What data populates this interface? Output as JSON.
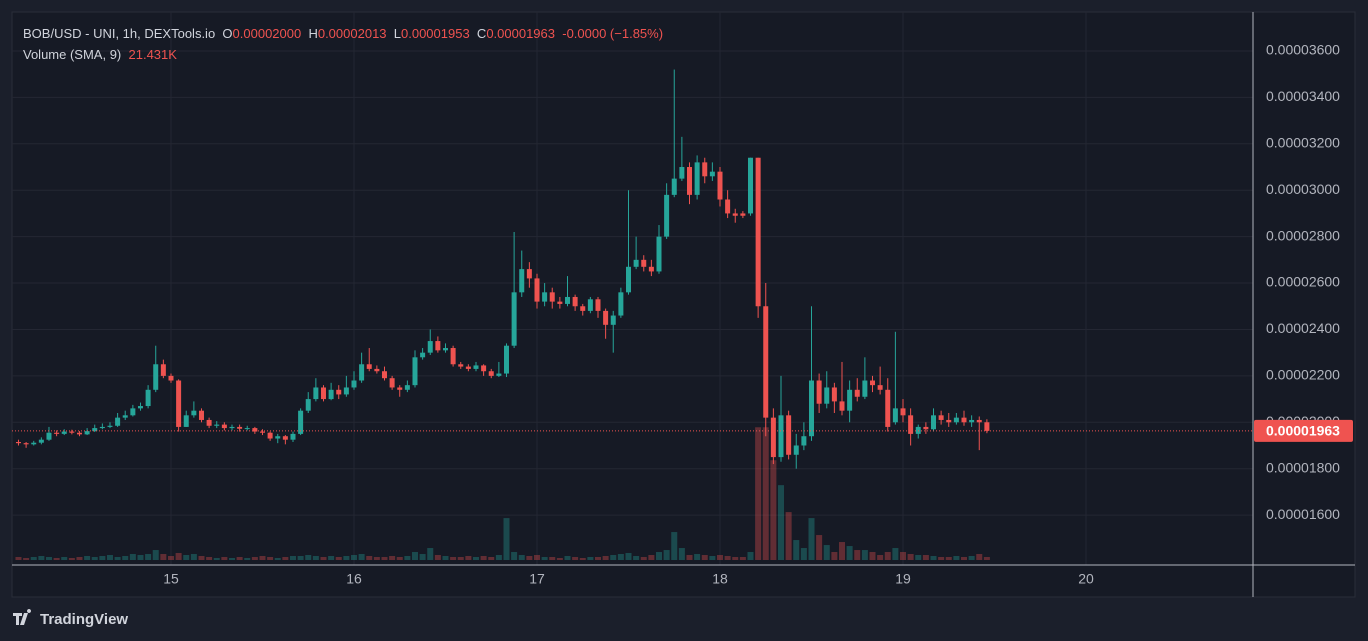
{
  "chart_data": {
    "type": "candlestick",
    "legend": {
      "symbol": "BOB/USD - UNI, 1h, DEXTools.io",
      "o_label": "O",
      "o": "0.00002000",
      "h_label": "H",
      "h": "0.00002013",
      "l_label": "L",
      "l": "0.00001953",
      "c_label": "C",
      "c": "0.00001963",
      "change": "-0.0000 (−1.85%)",
      "volume_label": "Volume (SMA, 9)",
      "volume_sma": "21.431K"
    },
    "up_color": "#26a69a",
    "down_color": "#ef5350",
    "open": [
      1.915e-05,
      1.91e-05,
      1.905e-05,
      1.912e-05,
      1.925e-05,
      1.955e-05,
      1.95e-05,
      1.96e-05,
      1.955e-05,
      1.948e-05,
      1.962e-05,
      1.975e-05,
      1.98e-05,
      1.985e-05,
      2.02e-05,
      2.03e-05,
      2.06e-05,
      2.07e-05,
      2.14e-05,
      2.25e-05,
      2.2e-05,
      2.18e-05,
      1.98e-05,
      2.03e-05,
      2.05e-05,
      2.01e-05,
      1.985e-05,
      1.99e-05,
      1.975e-05,
      1.98e-05,
      1.972e-05,
      1.975e-05,
      1.96e-05,
      1.955e-05,
      1.93e-05,
      1.94e-05,
      1.925e-05,
      1.95e-05,
      2.05e-05,
      2.1e-05,
      2.15e-05,
      2.1e-05,
      2.14e-05,
      2.12e-05,
      2.15e-05,
      2.18e-05,
      2.25e-05,
      2.23e-05,
      2.22e-05,
      2.19e-05,
      2.15e-05,
      2.14e-05,
      2.16e-05,
      2.28e-05,
      2.3e-05,
      2.35e-05,
      2.31e-05,
      2.32e-05,
      2.25e-05,
      2.24e-05,
      2.23e-05,
      2.245e-05,
      2.22e-05,
      2.2e-05,
      2.21e-05,
      2.33e-05,
      2.56e-05,
      2.66e-05,
      2.62e-05,
      2.52e-05,
      2.56e-05,
      2.52e-05,
      2.51e-05,
      2.54e-05,
      2.5e-05,
      2.48e-05,
      2.53e-05,
      2.48e-05,
      2.42e-05,
      2.46e-05,
      2.56e-05,
      2.67e-05,
      2.7e-05,
      2.67e-05,
      2.65e-05,
      2.8e-05,
      2.98e-05,
      3.05e-05,
      3.1e-05,
      2.98e-05,
      3.12e-05,
      3.06e-05,
      3.08e-05,
      2.96e-05,
      2.9e-05,
      2.9e-05,
      2.9e-05,
      3.14e-05,
      2.5e-05,
      2.02e-05,
      1.85e-05,
      2.03e-05,
      1.86e-05,
      1.9e-05,
      1.94e-05,
      2.18e-05,
      2.08e-05,
      2.15e-05,
      2.09e-05,
      2.05e-05,
      2.14e-05,
      2.11e-05,
      2.18e-05,
      2.16e-05,
      2.14e-05,
      2e-05,
      2.06e-05,
      2.03e-05,
      1.95e-05,
      1.98e-05,
      1.97e-05,
      2.03e-05,
      2.01e-05,
      2e-05,
      2.02e-05,
      2e-05,
      2.01e-05,
      2e-05
    ],
    "high": [
      1.925e-05,
      1.915e-05,
      1.92e-05,
      1.935e-05,
      1.98e-05,
      1.965e-05,
      1.97e-05,
      1.968e-05,
      1.962e-05,
      1.975e-05,
      1.99e-05,
      1.995e-05,
      2e-05,
      2.04e-05,
      2.05e-05,
      2.075e-05,
      2.085e-05,
      2.16e-05,
      2.33e-05,
      2.27e-05,
      2.21e-05,
      2.185e-05,
      2.05e-05,
      2.09e-05,
      2.06e-05,
      2.02e-05,
      2.005e-05,
      2e-05,
      1.99e-05,
      1.99e-05,
      1.985e-05,
      1.98e-05,
      1.97e-05,
      1.96e-05,
      1.95e-05,
      1.945e-05,
      1.96e-05,
      2.06e-05,
      2.13e-05,
      2.19e-05,
      2.16e-05,
      2.17e-05,
      2.16e-05,
      2.2e-05,
      2.22e-05,
      2.3e-05,
      2.32e-05,
      2.245e-05,
      2.24e-05,
      2.2e-05,
      2.16e-05,
      2.18e-05,
      2.31e-05,
      2.32e-05,
      2.4e-05,
      2.37e-05,
      2.34e-05,
      2.33e-05,
      2.26e-05,
      2.25e-05,
      2.26e-05,
      2.25e-05,
      2.23e-05,
      2.26e-05,
      2.34e-05,
      2.82e-05,
      2.74e-05,
      2.69e-05,
      2.64e-05,
      2.6e-05,
      2.58e-05,
      2.54e-05,
      2.63e-05,
      2.55e-05,
      2.51e-05,
      2.54e-05,
      2.54e-05,
      2.49e-05,
      2.48e-05,
      2.58e-05,
      3e-05,
      2.8e-05,
      2.72e-05,
      2.7e-05,
      2.85e-05,
      3.03e-05,
      3.52e-05,
      3.23e-05,
      3.12e-05,
      3.15e-05,
      3.14e-05,
      3.12e-05,
      3.1e-05,
      3e-05,
      2.92e-05,
      2.91e-05,
      3.14e-05,
      3.14e-05,
      2.6e-05,
      2.06e-05,
      2.2e-05,
      2.05e-05,
      1.95e-05,
      2e-05,
      2.5e-05,
      2.21e-05,
      2.22e-05,
      2.17e-05,
      2.26e-05,
      2.18e-05,
      2.19e-05,
      2.28e-05,
      2.2e-05,
      2.24e-05,
      2.19e-05,
      2.39e-05,
      2.1e-05,
      2.06e-05,
      1.99e-05,
      2e-05,
      2.06e-05,
      2.05e-05,
      2.04e-05,
      2.04e-05,
      2.05e-05,
      2.03e-05,
      2.025e-05,
      2.013e-05
    ],
    "low": [
      1.9e-05,
      1.89e-05,
      1.9e-05,
      1.905e-05,
      1.92e-05,
      1.94e-05,
      1.945e-05,
      1.948e-05,
      1.94e-05,
      1.945e-05,
      1.958e-05,
      1.97e-05,
      1.975e-05,
      1.98e-05,
      2.01e-05,
      2.025e-05,
      2.05e-05,
      2.06e-05,
      2.13e-05,
      2.19e-05,
      2.17e-05,
      1.96e-05,
      1.98e-05,
      2.02e-05,
      2e-05,
      1.975e-05,
      1.975e-05,
      1.965e-05,
      1.965e-05,
      1.96e-05,
      1.965e-05,
      1.95e-05,
      1.945e-05,
      1.92e-05,
      1.91e-05,
      1.905e-05,
      1.915e-05,
      1.945e-05,
      2.04e-05,
      2.09e-05,
      2.09e-05,
      2.095e-05,
      2.1e-05,
      2.11e-05,
      2.14e-05,
      2.17e-05,
      2.22e-05,
      2.21e-05,
      2.18e-05,
      2.14e-05,
      2.11e-05,
      2.13e-05,
      2.15e-05,
      2.27e-05,
      2.29e-05,
      2.3e-05,
      2.3e-05,
      2.24e-05,
      2.23e-05,
      2.22e-05,
      2.22e-05,
      2.2e-05,
      2.19e-05,
      2.195e-05,
      2.195e-05,
      2.32e-05,
      2.54e-05,
      2.58e-05,
      2.49e-05,
      2.5e-05,
      2.49e-05,
      2.49e-05,
      2.5e-05,
      2.48e-05,
      2.46e-05,
      2.47e-05,
      2.45e-05,
      2.36e-05,
      2.3e-05,
      2.45e-05,
      2.55e-05,
      2.66e-05,
      2.65e-05,
      2.63e-05,
      2.64e-05,
      2.79e-05,
      2.97e-05,
      3.04e-05,
      2.94e-05,
      2.96e-05,
      3.03e-05,
      3.04e-05,
      2.93e-05,
      2.88e-05,
      2.86e-05,
      2.88e-05,
      2.89e-05,
      2.45e-05,
      1.94e-05,
      1.82e-05,
      1.83e-05,
      1.84e-05,
      1.8e-05,
      1.88e-05,
      1.92e-05,
      2.04e-05,
      2.06e-05,
      2.04e-05,
      2.03e-05,
      2e-05,
      2.09e-05,
      2.1e-05,
      2.13e-05,
      2.12e-05,
      1.96e-05,
      1.99e-05,
      2e-05,
      1.9e-05,
      1.93e-05,
      1.95e-05,
      1.96e-05,
      1.99e-05,
      1.98e-05,
      1.99e-05,
      1.985e-05,
      1.98e-05,
      1.88e-05,
      1.953e-05
    ],
    "close": [
      1.91e-05,
      1.905e-05,
      1.912e-05,
      1.925e-05,
      1.955e-05,
      1.95e-05,
      1.96e-05,
      1.955e-05,
      1.948e-05,
      1.962e-05,
      1.975e-05,
      1.98e-05,
      1.985e-05,
      2.02e-05,
      2.03e-05,
      2.06e-05,
      2.07e-05,
      2.14e-05,
      2.25e-05,
      2.2e-05,
      2.18e-05,
      1.98e-05,
      2.03e-05,
      2.05e-05,
      2.01e-05,
      1.985e-05,
      1.99e-05,
      1.975e-05,
      1.98e-05,
      1.972e-05,
      1.975e-05,
      1.96e-05,
      1.955e-05,
      1.93e-05,
      1.94e-05,
      1.925e-05,
      1.95e-05,
      2.05e-05,
      2.1e-05,
      2.15e-05,
      2.1e-05,
      2.14e-05,
      2.12e-05,
      2.15e-05,
      2.18e-05,
      2.25e-05,
      2.23e-05,
      2.22e-05,
      2.19e-05,
      2.15e-05,
      2.14e-05,
      2.16e-05,
      2.28e-05,
      2.3e-05,
      2.35e-05,
      2.31e-05,
      2.32e-05,
      2.25e-05,
      2.24e-05,
      2.23e-05,
      2.245e-05,
      2.22e-05,
      2.2e-05,
      2.21e-05,
      2.33e-05,
      2.56e-05,
      2.66e-05,
      2.62e-05,
      2.52e-05,
      2.56e-05,
      2.52e-05,
      2.51e-05,
      2.54e-05,
      2.5e-05,
      2.48e-05,
      2.53e-05,
      2.48e-05,
      2.42e-05,
      2.46e-05,
      2.56e-05,
      2.67e-05,
      2.7e-05,
      2.67e-05,
      2.65e-05,
      2.8e-05,
      2.98e-05,
      3.05e-05,
      3.1e-05,
      2.98e-05,
      3.12e-05,
      3.06e-05,
      3.08e-05,
      2.96e-05,
      2.9e-05,
      2.89e-05,
      2.89e-05,
      3.14e-05,
      2.5e-05,
      2.02e-05,
      1.85e-05,
      2.03e-05,
      1.86e-05,
      1.9e-05,
      1.94e-05,
      2.18e-05,
      2.08e-05,
      2.15e-05,
      2.09e-05,
      2.05e-05,
      2.14e-05,
      2.11e-05,
      2.18e-05,
      2.16e-05,
      2.14e-05,
      1.98e-05,
      2.06e-05,
      2.03e-05,
      1.95e-05,
      1.98e-05,
      1.97e-05,
      2.03e-05,
      2.01e-05,
      2e-05,
      2.02e-05,
      2e-05,
      2.01e-05,
      2e-05,
      1.963e-05
    ],
    "volume": [
      19500,
      13000,
      19500,
      26000,
      19500,
      13000,
      19500,
      13000,
      19500,
      26000,
      19500,
      26000,
      32500,
      19500,
      26000,
      39000,
      32500,
      39000,
      65000,
      39000,
      26000,
      45500,
      32500,
      39000,
      26000,
      19500,
      13000,
      19500,
      13000,
      19500,
      13000,
      19500,
      26000,
      19500,
      13000,
      19500,
      26000,
      26000,
      32500,
      26000,
      19500,
      26000,
      19500,
      26000,
      32500,
      39000,
      26000,
      19500,
      19500,
      26000,
      19500,
      26000,
      52000,
      39000,
      78000,
      32500,
      26000,
      19500,
      19500,
      26000,
      19500,
      26000,
      19500,
      32500,
      273000,
      52000,
      32500,
      26000,
      32500,
      19500,
      19500,
      13000,
      26000,
      19500,
      13000,
      19500,
      19500,
      26000,
      32500,
      39000,
      45500,
      26000,
      19500,
      32500,
      52000,
      65000,
      182000,
      78000,
      32500,
      39000,
      32500,
      26000,
      32500,
      26000,
      19500,
      19500,
      52000,
      864500,
      864500,
      650000,
      487500,
      312000,
      130000,
      78000,
      273000,
      162500,
      97500,
      52000,
      117000,
      91000,
      65000,
      65000,
      52000,
      32500,
      52000,
      78000,
      52000,
      39000,
      32500,
      32500,
      26000,
      19500,
      19500,
      26000,
      19500,
      26000,
      39000,
      19500
    ],
    "xlim": [
      -0.85,
      161.9
    ],
    "xticks": [
      {
        "value": 20,
        "label": "15"
      },
      {
        "value": 44,
        "label": "16"
      },
      {
        "value": 68,
        "label": "17"
      },
      {
        "value": 92,
        "label": "18"
      },
      {
        "value": 116,
        "label": "19"
      },
      {
        "value": 140,
        "label": "20"
      }
    ],
    "ylim": [
      1.385e-05,
      3.768e-05
    ],
    "yticks": [
      {
        "value": 1.6e-05,
        "label": "0.00001600"
      },
      {
        "value": 1.8e-05,
        "label": "0.00001800"
      },
      {
        "value": 2e-05,
        "label": "0.00002000"
      },
      {
        "value": 2.2e-05,
        "label": "0.00002200"
      },
      {
        "value": 2.4e-05,
        "label": "0.00002400"
      },
      {
        "value": 2.6e-05,
        "label": "0.00002600"
      },
      {
        "value": 2.8e-05,
        "label": "0.00002800"
      },
      {
        "value": 3e-05,
        "label": "0.00003000"
      },
      {
        "value": 3.2e-05,
        "label": "0.00003200"
      },
      {
        "value": 3.4e-05,
        "label": "0.00003400"
      },
      {
        "value": 3.6e-05,
        "label": "0.00003600"
      }
    ],
    "last_price": {
      "value": 1.963e-05,
      "label": "0.00001963"
    },
    "grid": true,
    "brand": "TradingView"
  }
}
